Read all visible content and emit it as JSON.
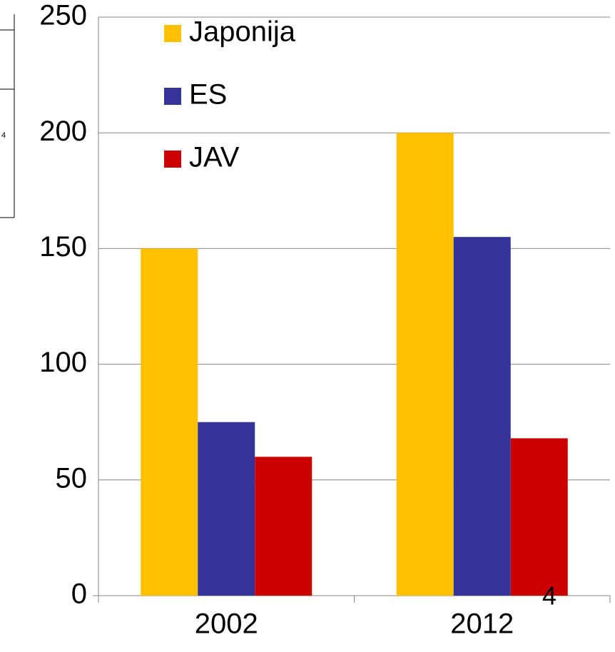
{
  "chart_data": {
    "type": "bar",
    "categories": [
      "2002",
      "2012"
    ],
    "series": [
      {
        "name": "Japonija",
        "color": "#ffc000",
        "values": [
          150,
          200
        ]
      },
      {
        "name": "ES",
        "color": "#333399",
        "values": [
          75,
          155
        ]
      },
      {
        "name": "JAV",
        "color": "#cc0000",
        "values": [
          60,
          68
        ]
      }
    ],
    "ylim": [
      0,
      250
    ],
    "yticks": [
      0,
      50,
      100,
      150,
      200,
      250
    ],
    "grid": true,
    "legend": "top",
    "annotations": [
      "4",
      "4"
    ]
  }
}
